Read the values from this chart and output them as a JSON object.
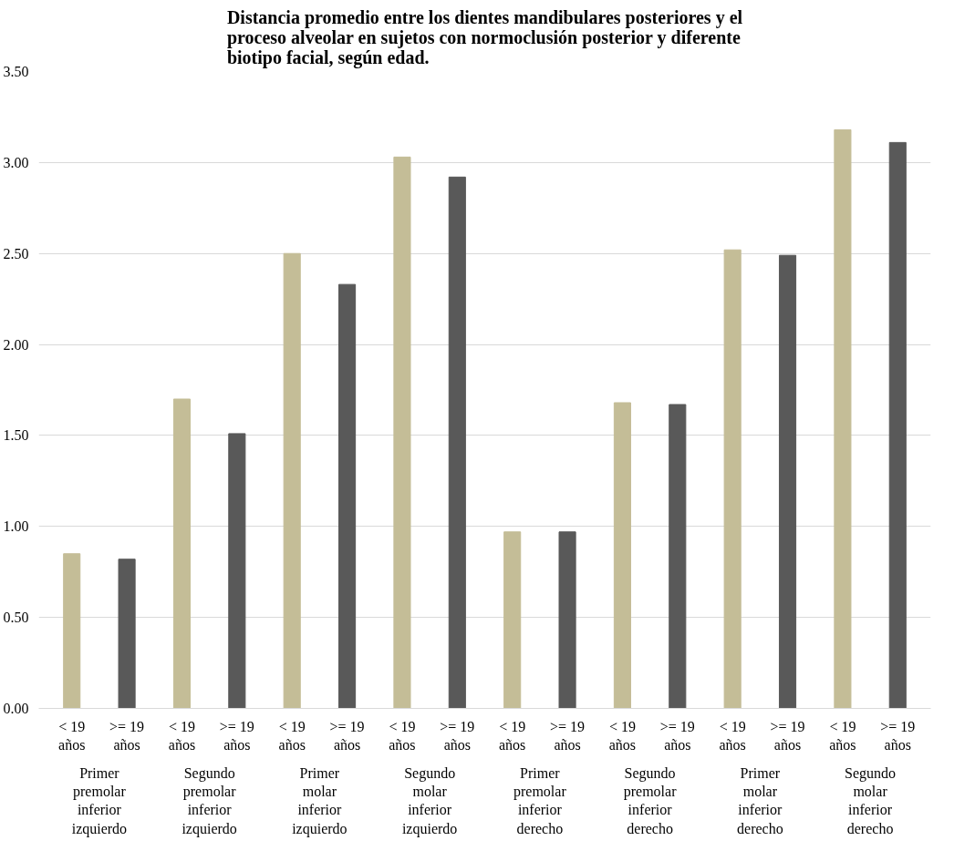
{
  "chart_data": {
    "type": "bar",
    "title": "Distancia promedio entre los dientes mandibulares posteriores y el proceso alveolar en sujetos con normoclusión posterior y diferente biotipo facial, según edad.",
    "categories": [
      "< 19 años",
      ">= 19 años",
      "< 19 años",
      ">= 19 años",
      "< 19 años",
      ">= 19 años",
      "< 19 años",
      ">= 19 años",
      "< 19 años",
      ">= 19 años",
      "< 19 años",
      ">= 19 años",
      "< 19 años",
      ">= 19 años",
      "< 19 años",
      ">= 19 años"
    ],
    "values": [
      0.85,
      0.82,
      1.7,
      1.51,
      2.5,
      2.33,
      3.03,
      2.92,
      0.97,
      0.97,
      1.68,
      1.67,
      2.52,
      2.49,
      3.18,
      3.11
    ],
    "colors": [
      "#c4bd97",
      "#595959",
      "#c4bd97",
      "#595959",
      "#c4bd97",
      "#595959",
      "#c4bd97",
      "#595959",
      "#c4bd97",
      "#595959",
      "#c4bd97",
      "#595959",
      "#c4bd97",
      "#595959",
      "#c4bd97",
      "#595959"
    ],
    "annotations": [
      "Primer premolar inferior izquierdo",
      "Segundo premolar inferior izquierdo",
      "Primer molar inferior izquierdo",
      "Segundo molar inferior izquierdo",
      "Primer premolar inferior derecho",
      "Segundo premolar inferior derecho",
      "Primer molar inferior derecho",
      "Segundo molar inferior derecho"
    ],
    "ylim": [
      0,
      3.5
    ],
    "yticks": [
      {
        "value": 0,
        "label": "0.00"
      },
      {
        "value": 0.5,
        "label": "0.50"
      },
      {
        "value": 1,
        "label": "1.00"
      },
      {
        "value": 1.5,
        "label": "1.50"
      },
      {
        "value": 2,
        "label": "2.00"
      },
      {
        "value": 2.5,
        "label": "2.50"
      },
      {
        "value": 3,
        "label": "3.00"
      },
      {
        "value": 3.5,
        "label": "3.50"
      }
    ],
    "grid": "y"
  }
}
